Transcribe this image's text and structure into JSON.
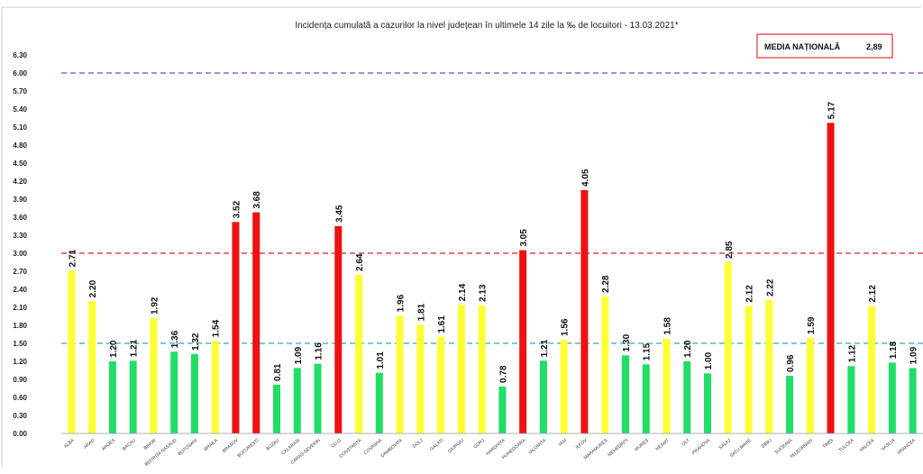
{
  "chart_data": {
    "type": "bar",
    "title": "Incidența cumulată a cazurilor la nivel județean în ultimele 14 zile la ‰ de locuitori - 13.03.2021*",
    "media_label": "MEDIA NAȚIONALĂ",
    "media_value": "2,89",
    "ylim": [
      0,
      6.3
    ],
    "y_ticks": [
      "0.00",
      "0.30",
      "0.60",
      "0.90",
      "1.20",
      "1.50",
      "1.80",
      "2.10",
      "2.40",
      "2.70",
      "3.00",
      "3.30",
      "3.60",
      "3.90",
      "4.20",
      "4.50",
      "4.80",
      "5.10",
      "5.40",
      "5.70",
      "6.00",
      "6.30"
    ],
    "reference_lines": [
      {
        "value": 6.0,
        "color": "#8a3fbf",
        "style": "dashed"
      },
      {
        "value": 3.0,
        "color": "#d42020",
        "style": "dashed"
      },
      {
        "value": 1.5,
        "color": "#2aa6cc",
        "style": "dashed"
      }
    ],
    "colors": {
      "green": "#22dd66",
      "yellow": "#ffff33",
      "red": "#ee1111"
    },
    "categories": [
      "ALBA",
      "ARAD",
      "ARGES",
      "BACAU",
      "BIHOR",
      "BISTRITA NASAUD",
      "BOTOSANI",
      "BRAILA",
      "BRASOV",
      "BUCURESTI",
      "BUZAU",
      "CALARASI",
      "CARAS-SEVERIN",
      "CLUJ",
      "CONSTANTA",
      "COVASNA",
      "DAMBOVITA",
      "DOLJ",
      "GALATI",
      "GIURGIU",
      "GORJ",
      "HARGHITA",
      "HUNEDOARA",
      "IALOMITA",
      "IASI",
      "ILFOV",
      "MARAMURES",
      "MEHEDINTI",
      "MURES",
      "NEAMT",
      "OLT",
      "PRAHOVA",
      "SALAJ",
      "SATU MARE",
      "SIBIU",
      "SUCEAVA",
      "TELEORMAN",
      "TIMIS",
      "TULCEA",
      "VALCEA",
      "VASLUI",
      "VRANCEA"
    ],
    "values": [
      2.71,
      2.2,
      1.2,
      1.21,
      1.92,
      1.36,
      1.32,
      1.54,
      3.52,
      3.68,
      0.81,
      1.09,
      1.16,
      3.45,
      2.64,
      1.01,
      1.96,
      1.81,
      1.61,
      2.14,
      2.13,
      0.78,
      3.05,
      1.21,
      1.56,
      4.05,
      2.28,
      1.3,
      1.15,
      1.58,
      1.2,
      1.0,
      2.85,
      2.12,
      2.22,
      0.96,
      1.59,
      5.17,
      1.12,
      2.12,
      1.18,
      1.09
    ],
    "value_labels": [
      "2.71",
      "2.20",
      "1.20",
      "1.21",
      "1.92",
      "1.36",
      "1.32",
      "1.54",
      "3.52",
      "3.68",
      "0.81",
      "1.09",
      "1.16",
      "3.45",
      "2.64",
      "1.01",
      "1.96",
      "1.81",
      "1.61",
      "2.14",
      "2.13",
      "0.78",
      "3.05",
      "1.21",
      "1.56",
      "4.05",
      "2.28",
      "1.30",
      "1.15",
      "1.58",
      "1.20",
      "1.00",
      "2.85",
      "2.12",
      "2.22",
      "0.96",
      "1.59",
      "5.17",
      "1.12",
      "2.12",
      "1.18",
      "1.09"
    ],
    "bar_colors": [
      "yellow",
      "yellow",
      "green",
      "green",
      "yellow",
      "green",
      "green",
      "yellow",
      "red",
      "red",
      "green",
      "green",
      "green",
      "red",
      "yellow",
      "green",
      "yellow",
      "yellow",
      "yellow",
      "yellow",
      "yellow",
      "green",
      "red",
      "green",
      "yellow",
      "red",
      "yellow",
      "green",
      "green",
      "yellow",
      "green",
      "green",
      "yellow",
      "yellow",
      "yellow",
      "green",
      "yellow",
      "red",
      "green",
      "yellow",
      "green",
      "green"
    ],
    "grid": false,
    "legend": "none"
  }
}
